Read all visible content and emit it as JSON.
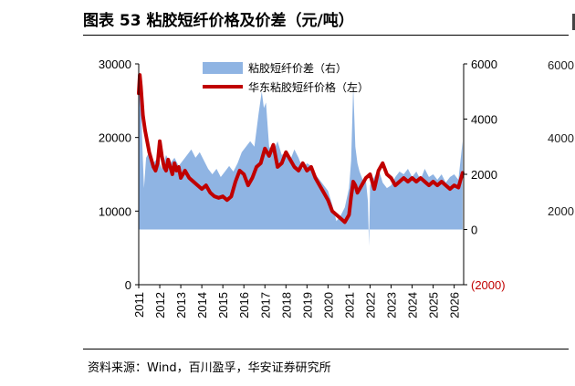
{
  "header": {
    "title": "图表 53 粘胶短纤价格及价差（元/吨）"
  },
  "footer": {
    "source": "资料来源：Wind，百川盈孚，华安证券研究所"
  },
  "adjacent_chart_ticks": [
    "6000",
    "4000",
    "2000"
  ],
  "chart_data": {
    "type": "area",
    "title": "",
    "x_ticks": [
      "2011",
      "2012",
      "2013",
      "2014",
      "2015",
      "2016",
      "2017",
      "2018",
      "2019",
      "2020",
      "2021",
      "2022",
      "2023",
      "2024",
      "2025",
      "2026"
    ],
    "x_range": [
      2011.0,
      2026.45
    ],
    "y_left": {
      "ticks": [
        "0",
        "10000",
        "20000",
        "30000"
      ],
      "range": [
        0,
        30000
      ]
    },
    "y_right": {
      "ticks": [
        "(2000)",
        "0",
        "2000",
        "4000",
        "6000"
      ],
      "range": [
        -2000,
        6000
      ]
    },
    "legend": [
      "粘胶短纤价差（右）",
      "华东粘胶短纤价格（左）"
    ],
    "legend_position": "top-center",
    "colors": {
      "spread": "#8fb4e3",
      "price": "#c00000",
      "negative_tick": "#c00000"
    },
    "series": [
      {
        "name": "华东粘胶短纤价格（左）",
        "axis": "left",
        "type": "line",
        "x": [
          2011.0,
          2011.05,
          2011.1,
          2011.15,
          2011.2,
          2011.3,
          2011.4,
          2011.5,
          2011.6,
          2011.7,
          2011.8,
          2011.9,
          2012.0,
          2012.1,
          2012.2,
          2012.3,
          2012.4,
          2012.5,
          2012.6,
          2012.7,
          2012.8,
          2012.9,
          2013.0,
          2013.2,
          2013.4,
          2013.6,
          2013.8,
          2014.0,
          2014.2,
          2014.4,
          2014.6,
          2014.8,
          2015.0,
          2015.2,
          2015.4,
          2015.6,
          2015.8,
          2016.0,
          2016.2,
          2016.4,
          2016.6,
          2016.8,
          2017.0,
          2017.2,
          2017.4,
          2017.6,
          2017.8,
          2018.0,
          2018.2,
          2018.4,
          2018.6,
          2018.8,
          2019.0,
          2019.2,
          2019.4,
          2019.6,
          2019.8,
          2020.0,
          2020.2,
          2020.4,
          2020.6,
          2020.8,
          2021.0,
          2021.1,
          2021.2,
          2021.3,
          2021.4,
          2021.6,
          2021.8,
          2022.0,
          2022.2,
          2022.4,
          2022.6,
          2022.8,
          2023.0,
          2023.2,
          2023.4,
          2023.6,
          2023.8,
          2024.0,
          2024.2,
          2024.4,
          2024.6,
          2024.8,
          2025.0,
          2025.2,
          2025.4,
          2025.6,
          2025.8,
          2026.0,
          2026.2,
          2026.4
        ],
        "values": [
          26000,
          28500,
          27000,
          25000,
          23000,
          21000,
          19500,
          18000,
          17000,
          16000,
          15500,
          16500,
          19500,
          17500,
          16000,
          15500,
          17000,
          16000,
          15000,
          16500,
          15500,
          16000,
          14500,
          15500,
          14500,
          14000,
          13500,
          13000,
          13500,
          12500,
          12000,
          11800,
          12000,
          11500,
          12000,
          14000,
          15500,
          15000,
          13500,
          14500,
          16000,
          16500,
          18500,
          17500,
          19000,
          16000,
          16500,
          18000,
          17000,
          16000,
          15500,
          16500,
          15500,
          16000,
          14500,
          13500,
          12500,
          11500,
          10000,
          9500,
          9000,
          8500,
          9500,
          12000,
          14000,
          13500,
          12500,
          13500,
          14500,
          15000,
          13000,
          15500,
          16500,
          15000,
          14500,
          13500,
          14000,
          14500,
          14000,
          14500,
          14000,
          14500,
          14000,
          13500,
          14000,
          13500,
          14000,
          13500,
          13000,
          13500,
          13200,
          15200
        ]
      },
      {
        "name": "粘胶短纤价差（右）",
        "axis": "right",
        "type": "area",
        "x": [
          2011.0,
          2011.05,
          2011.1,
          2011.15,
          2011.25,
          2011.35,
          2011.5,
          2011.7,
          2011.9,
          2012.1,
          2012.3,
          2012.5,
          2012.7,
          2012.9,
          2013.1,
          2013.3,
          2013.5,
          2013.7,
          2013.9,
          2014.1,
          2014.3,
          2014.5,
          2014.7,
          2014.9,
          2015.1,
          2015.3,
          2015.5,
          2015.7,
          2015.9,
          2016.1,
          2016.3,
          2016.5,
          2016.7,
          2016.85,
          2016.95,
          2017.05,
          2017.2,
          2017.4,
          2017.6,
          2017.8,
          2018.0,
          2018.2,
          2018.4,
          2018.6,
          2018.8,
          2019.0,
          2019.2,
          2019.4,
          2019.6,
          2019.8,
          2020.0,
          2020.2,
          2020.4,
          2020.6,
          2020.8,
          2021.0,
          2021.1,
          2021.2,
          2021.3,
          2021.4,
          2021.5,
          2021.6,
          2021.7,
          2021.8,
          2021.9,
          2021.95,
          2022.0,
          2022.2,
          2022.4,
          2022.6,
          2022.8,
          2023.0,
          2023.2,
          2023.4,
          2023.6,
          2023.8,
          2024.0,
          2024.2,
          2024.4,
          2024.6,
          2024.8,
          2025.0,
          2025.2,
          2025.4,
          2025.6,
          2025.8,
          2026.0,
          2026.2,
          2026.4
        ],
        "values": [
          4500,
          5200,
          4800,
          3500,
          1500,
          2600,
          2800,
          2400,
          2600,
          2200,
          2700,
          2400,
          2600,
          2300,
          2500,
          2700,
          2900,
          2600,
          2800,
          2500,
          2200,
          2000,
          2200,
          1900,
          2100,
          2300,
          2100,
          2400,
          2800,
          3000,
          3200,
          3000,
          4200,
          5000,
          4400,
          4600,
          3000,
          2800,
          3200,
          2700,
          2800,
          2500,
          2900,
          2600,
          2200,
          2400,
          2300,
          2000,
          1800,
          1600,
          1400,
          900,
          300,
          500,
          800,
          1500,
          2500,
          5200,
          3000,
          2400,
          2100,
          1900,
          1700,
          1800,
          1000,
          -600,
          1600,
          1900,
          2200,
          1700,
          1500,
          1600,
          1900,
          2100,
          2000,
          2200,
          1900,
          2100,
          1800,
          2200,
          1900,
          2000,
          1800,
          2000,
          1700,
          1900,
          2000,
          1800,
          3200
        ]
      }
    ]
  }
}
